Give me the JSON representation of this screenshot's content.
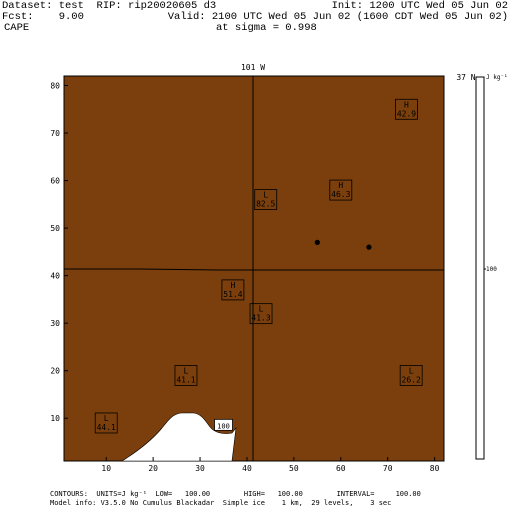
{
  "header": {
    "line1_left": "Dataset: test  RIP: rip20020605 d3",
    "line1_right": "Init: 1200 UTC Wed 05 Jun 02",
    "line2_left": "Fcst:    9.00",
    "line2_right": "Valid: 2100 UTC Wed 05 Jun 02 (1600 CDT Wed 05 Jun 02)",
    "line3_left": "CAPE",
    "line3_right": "at sigma = 0.998"
  },
  "map": {
    "top_label": "101 W",
    "right_lat_label": "37 N",
    "fill_color": "#7a3f0c",
    "low_region_color": "#ffffff",
    "x_ticks": [
      "10",
      "20",
      "30",
      "40",
      "50",
      "60",
      "70",
      "80"
    ],
    "y_ticks": [
      "10",
      "20",
      "30",
      "40",
      "50",
      "60",
      "70",
      "80"
    ],
    "x_range": [
      1,
      82
    ],
    "y_range": [
      1,
      82
    ],
    "features": [
      {
        "type": "H",
        "value": "42.9",
        "x": 74,
        "y": 75
      },
      {
        "type": "L",
        "value": "82.5",
        "x": 44,
        "y": 56
      },
      {
        "type": "H",
        "value": "46.3",
        "x": 60,
        "y": 58
      },
      {
        "type": "H",
        "value": "51.4",
        "x": 37,
        "y": 37
      },
      {
        "type": "L",
        "value": "41.3",
        "x": 43,
        "y": 32
      },
      {
        "type": "L",
        "value": "41.1",
        "x": 27,
        "y": 19
      },
      {
        "type": "L",
        "value": "26.2",
        "x": 75,
        "y": 19
      },
      {
        "type": "L",
        "value": "44.1",
        "x": 10,
        "y": 9
      }
    ],
    "contour_label": "100",
    "contour_label_pos": {
      "x": 35,
      "y": 8.5
    },
    "stations": [
      {
        "x": 55,
        "y": 47
      },
      {
        "x": 66,
        "y": 46
      }
    ]
  },
  "colorbar": {
    "units_label": "J kg⁻¹",
    "mid_label": "100"
  },
  "footer": {
    "line1": "CONTOURS:  UNITS=J kg⁻¹  LOW=   100.00        HIGH=   100.00        INTERVAL=     100.00",
    "line2": "Model info: V3.5.0 No Cumulus Blackadar  Simple ice    1 km,  29 levels,    3 sec"
  }
}
